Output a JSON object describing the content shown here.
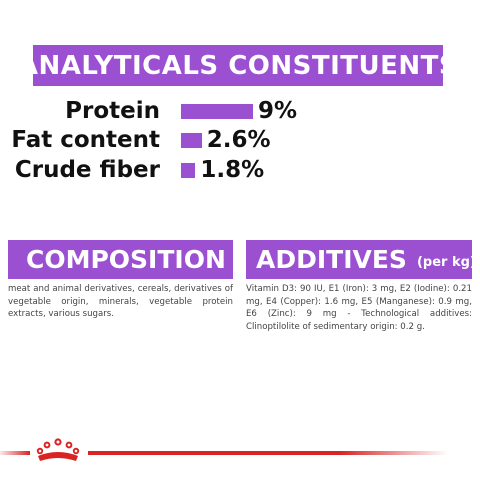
{
  "analyticals": {
    "title": "ANALYTICALS CONSTITUENTS",
    "items": [
      {
        "label": "Protein",
        "value": "9%",
        "percent": 9
      },
      {
        "label": "Fat content",
        "value": "2.6%",
        "percent": 2.6
      },
      {
        "label": "Crude fiber",
        "value": "1.8%",
        "percent": 1.8
      }
    ]
  },
  "composition": {
    "title": "COMPOSITION",
    "text": "meat and animal derivatives, cereals, derivatives of vegetable origin, minerals, vegetable protein extracts, various sugars."
  },
  "additives": {
    "title": "ADDITIVES",
    "unit": "(per kg)",
    "text": "Vitamin D3: 90 IU, E1 (Iron): 3 mg, E2 (Iodine): 0.21 mg, E4 (Copper): 1.6 mg, E5 (Manganese): 0.9 mg, E6 (Zinc): 9 mg - Technological additives: Clinoptilolite of sedimentary origin: 0.2 g."
  },
  "colors": {
    "accent": "#9b4fd1",
    "brand_red": "#d92424"
  },
  "icons": {
    "logo": "royal-canin-crown-icon"
  }
}
